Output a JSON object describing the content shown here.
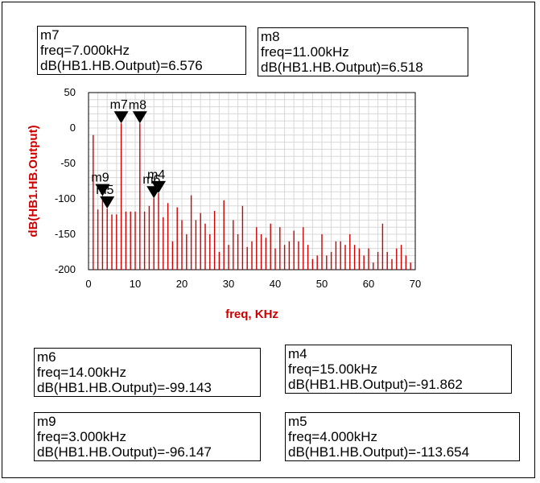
{
  "chart_data": {
    "type": "stem",
    "xlabel": "freq, KHz",
    "ylabel": "dB(HB1.HB.Output)",
    "xlim": [
      0,
      70
    ],
    "ylim": [
      -200,
      50
    ],
    "xticks": [
      "0",
      "10",
      "20",
      "30",
      "40",
      "50",
      "60",
      "70"
    ],
    "yticks": [
      "50",
      "0",
      "-50",
      "-100",
      "-150",
      "-200"
    ],
    "grid": true,
    "color": "#cc0000",
    "x": [
      1,
      2,
      3,
      4,
      5,
      6,
      7,
      8,
      9,
      10,
      11,
      12,
      13,
      14,
      15,
      16,
      17,
      18,
      19,
      20,
      21,
      22,
      23,
      24,
      25,
      26,
      27,
      28,
      29,
      30,
      31,
      32,
      33,
      34,
      35,
      36,
      37,
      38,
      39,
      40,
      41,
      42,
      43,
      44,
      45,
      46,
      47,
      48,
      49,
      50,
      51,
      52,
      53,
      54,
      55,
      56,
      57,
      58,
      59,
      60,
      61,
      62,
      63,
      64,
      65,
      66,
      67,
      68,
      69
    ],
    "y": [
      -10,
      -115,
      -96,
      -114,
      -122,
      -122,
      6.576,
      -118,
      -118,
      -118,
      6.518,
      -118,
      -110,
      -99.143,
      -91.862,
      -126,
      -106,
      -160,
      -112,
      -130,
      -150,
      -95,
      -130,
      -120,
      -135,
      -150,
      -117,
      -175,
      -102,
      -165,
      -130,
      -150,
      -110,
      -168,
      -160,
      -140,
      -150,
      -155,
      -135,
      -170,
      -140,
      -165,
      -160,
      -145,
      -160,
      -140,
      -165,
      -185,
      -180,
      -150,
      -180,
      -175,
      -160,
      -160,
      -165,
      -150,
      -165,
      -170,
      -180,
      -170,
      -190,
      -175,
      -135,
      -175,
      -185,
      -170,
      -165,
      -180,
      -190
    ]
  },
  "markers": [
    {
      "name": "m7",
      "freq_line": "freq=7.000kHz",
      "value_line": "dB(HB1.HB.Output)=6.576",
      "x": 7,
      "y": 6.576
    },
    {
      "name": "m8",
      "freq_line": "freq=11.00kHz",
      "value_line": "dB(HB1.HB.Output)=6.518",
      "x": 11,
      "y": 6.518
    },
    {
      "name": "m6",
      "freq_line": "freq=14.00kHz",
      "value_line": "dB(HB1.HB.Output)=-99.143",
      "x": 14,
      "y": -99.143
    },
    {
      "name": "m4",
      "freq_line": "freq=15.00kHz",
      "value_line": "dB(HB1.HB.Output)=-91.862",
      "x": 15,
      "y": -91.862
    },
    {
      "name": "m9",
      "freq_line": "freq=3.000kHz",
      "value_line": "dB(HB1.HB.Output)=-96.147",
      "x": 3,
      "y": -96.147
    },
    {
      "name": "m5",
      "freq_line": "freq=4.000kHz",
      "value_line": "dB(HB1.HB.Output)=-113.654",
      "x": 4,
      "y": -113.654
    }
  ]
}
